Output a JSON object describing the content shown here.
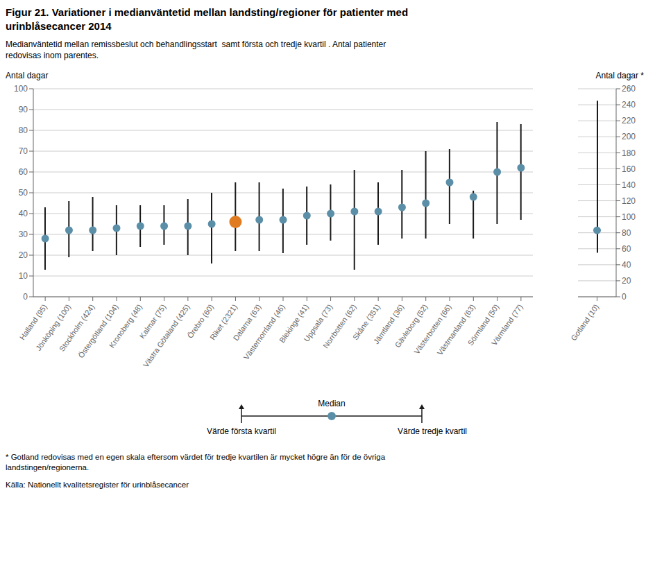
{
  "chart_data": [
    {
      "type": "scatter",
      "title": "Figur 21. Variationer i medianväntetid mellan landsting/regioner för patienter med\nurinblåsecancer 2014",
      "subtitle": "Medianväntetid mellan remissbeslut och behandlingsstart  samt första och tredje kvartil . Antal patienter\nredovisas inom parentes.",
      "y_label": "Antal dagar",
      "categories": [
        "Halland (95)",
        "Jönköping (100)",
        "Stockholm (424)",
        "Östergötland (104)",
        "Kronoberg (48)",
        "Kalmar (75)",
        "Västra Götaland (425)",
        "Örebro (60)",
        "Riket (2321)",
        "Dalarna (63)",
        "Västernorrland (46)",
        "Blekinge (41)",
        "Uppsala (73)",
        "Norrbotten (62)",
        "Skåne (351)",
        "Jämtland (36)",
        "Gävleborg (52)",
        "Västerbotten (66)",
        "Västmanland (63)",
        "Sörmland (50)",
        "Värmland (77)"
      ],
      "series": [
        {
          "name": "Median",
          "type": "scatter",
          "color": "#5b8fa8",
          "colors": [
            "#5b8fa8",
            "#5b8fa8",
            "#5b8fa8",
            "#5b8fa8",
            "#5b8fa8",
            "#5b8fa8",
            "#5b8fa8",
            "#5b8fa8",
            "#e07b20",
            "#5b8fa8",
            "#5b8fa8",
            "#5b8fa8",
            "#5b8fa8",
            "#5b8fa8",
            "#5b8fa8",
            "#5b8fa8",
            "#5b8fa8",
            "#5b8fa8",
            "#5b8fa8",
            "#5b8fa8",
            "#5b8fa8"
          ],
          "values": [
            28,
            32,
            32,
            33,
            34,
            34,
            34,
            35,
            36,
            37,
            37,
            39,
            40,
            41,
            41,
            43,
            45,
            55,
            48,
            60,
            62
          ]
        },
        {
          "type": "range",
          "color": "#1a1a1a",
          "low_name": "Värde första kvartil",
          "high_name": "Värde tredje kvartil",
          "low": [
            13,
            19,
            22,
            20,
            24,
            25,
            20,
            16,
            22,
            22,
            21,
            25,
            27,
            13,
            25,
            28,
            28,
            35,
            28,
            35,
            37
          ],
          "high": [
            43,
            46,
            48,
            44,
            44,
            44,
            47,
            50,
            55,
            55,
            52,
            53,
            54,
            61,
            55,
            61,
            70,
            71,
            51,
            84,
            83
          ]
        }
      ],
      "ylim": [
        0,
        100
      ],
      "yticks": [
        0,
        10,
        20,
        30,
        40,
        50,
        60,
        70,
        80,
        90,
        100
      ],
      "grid": true,
      "annotations": [
        "* Gotland redovisas med en egen skala eftersom värdet för tredje kvartilen är mycket högre än för de övriga\nlandstingen/regionerna.",
        "Källa: Nationellt kvalitetsregister för urinblåsecancer"
      ]
    },
    {
      "type": "scatter",
      "y_label": "Antal dagar *",
      "categories": [
        "Gotland (10)"
      ],
      "series": [
        {
          "type": "scatter",
          "color": "#5b8fa8",
          "values": [
            83
          ]
        },
        {
          "type": "range",
          "color": "#1a1a1a",
          "low": [
            55
          ],
          "high": [
            245
          ]
        }
      ],
      "ylim": [
        0,
        260
      ],
      "yticks": [
        0,
        20,
        40,
        60,
        80,
        100,
        120,
        140,
        160,
        180,
        200,
        220,
        240,
        260
      ],
      "grid": true
    }
  ]
}
